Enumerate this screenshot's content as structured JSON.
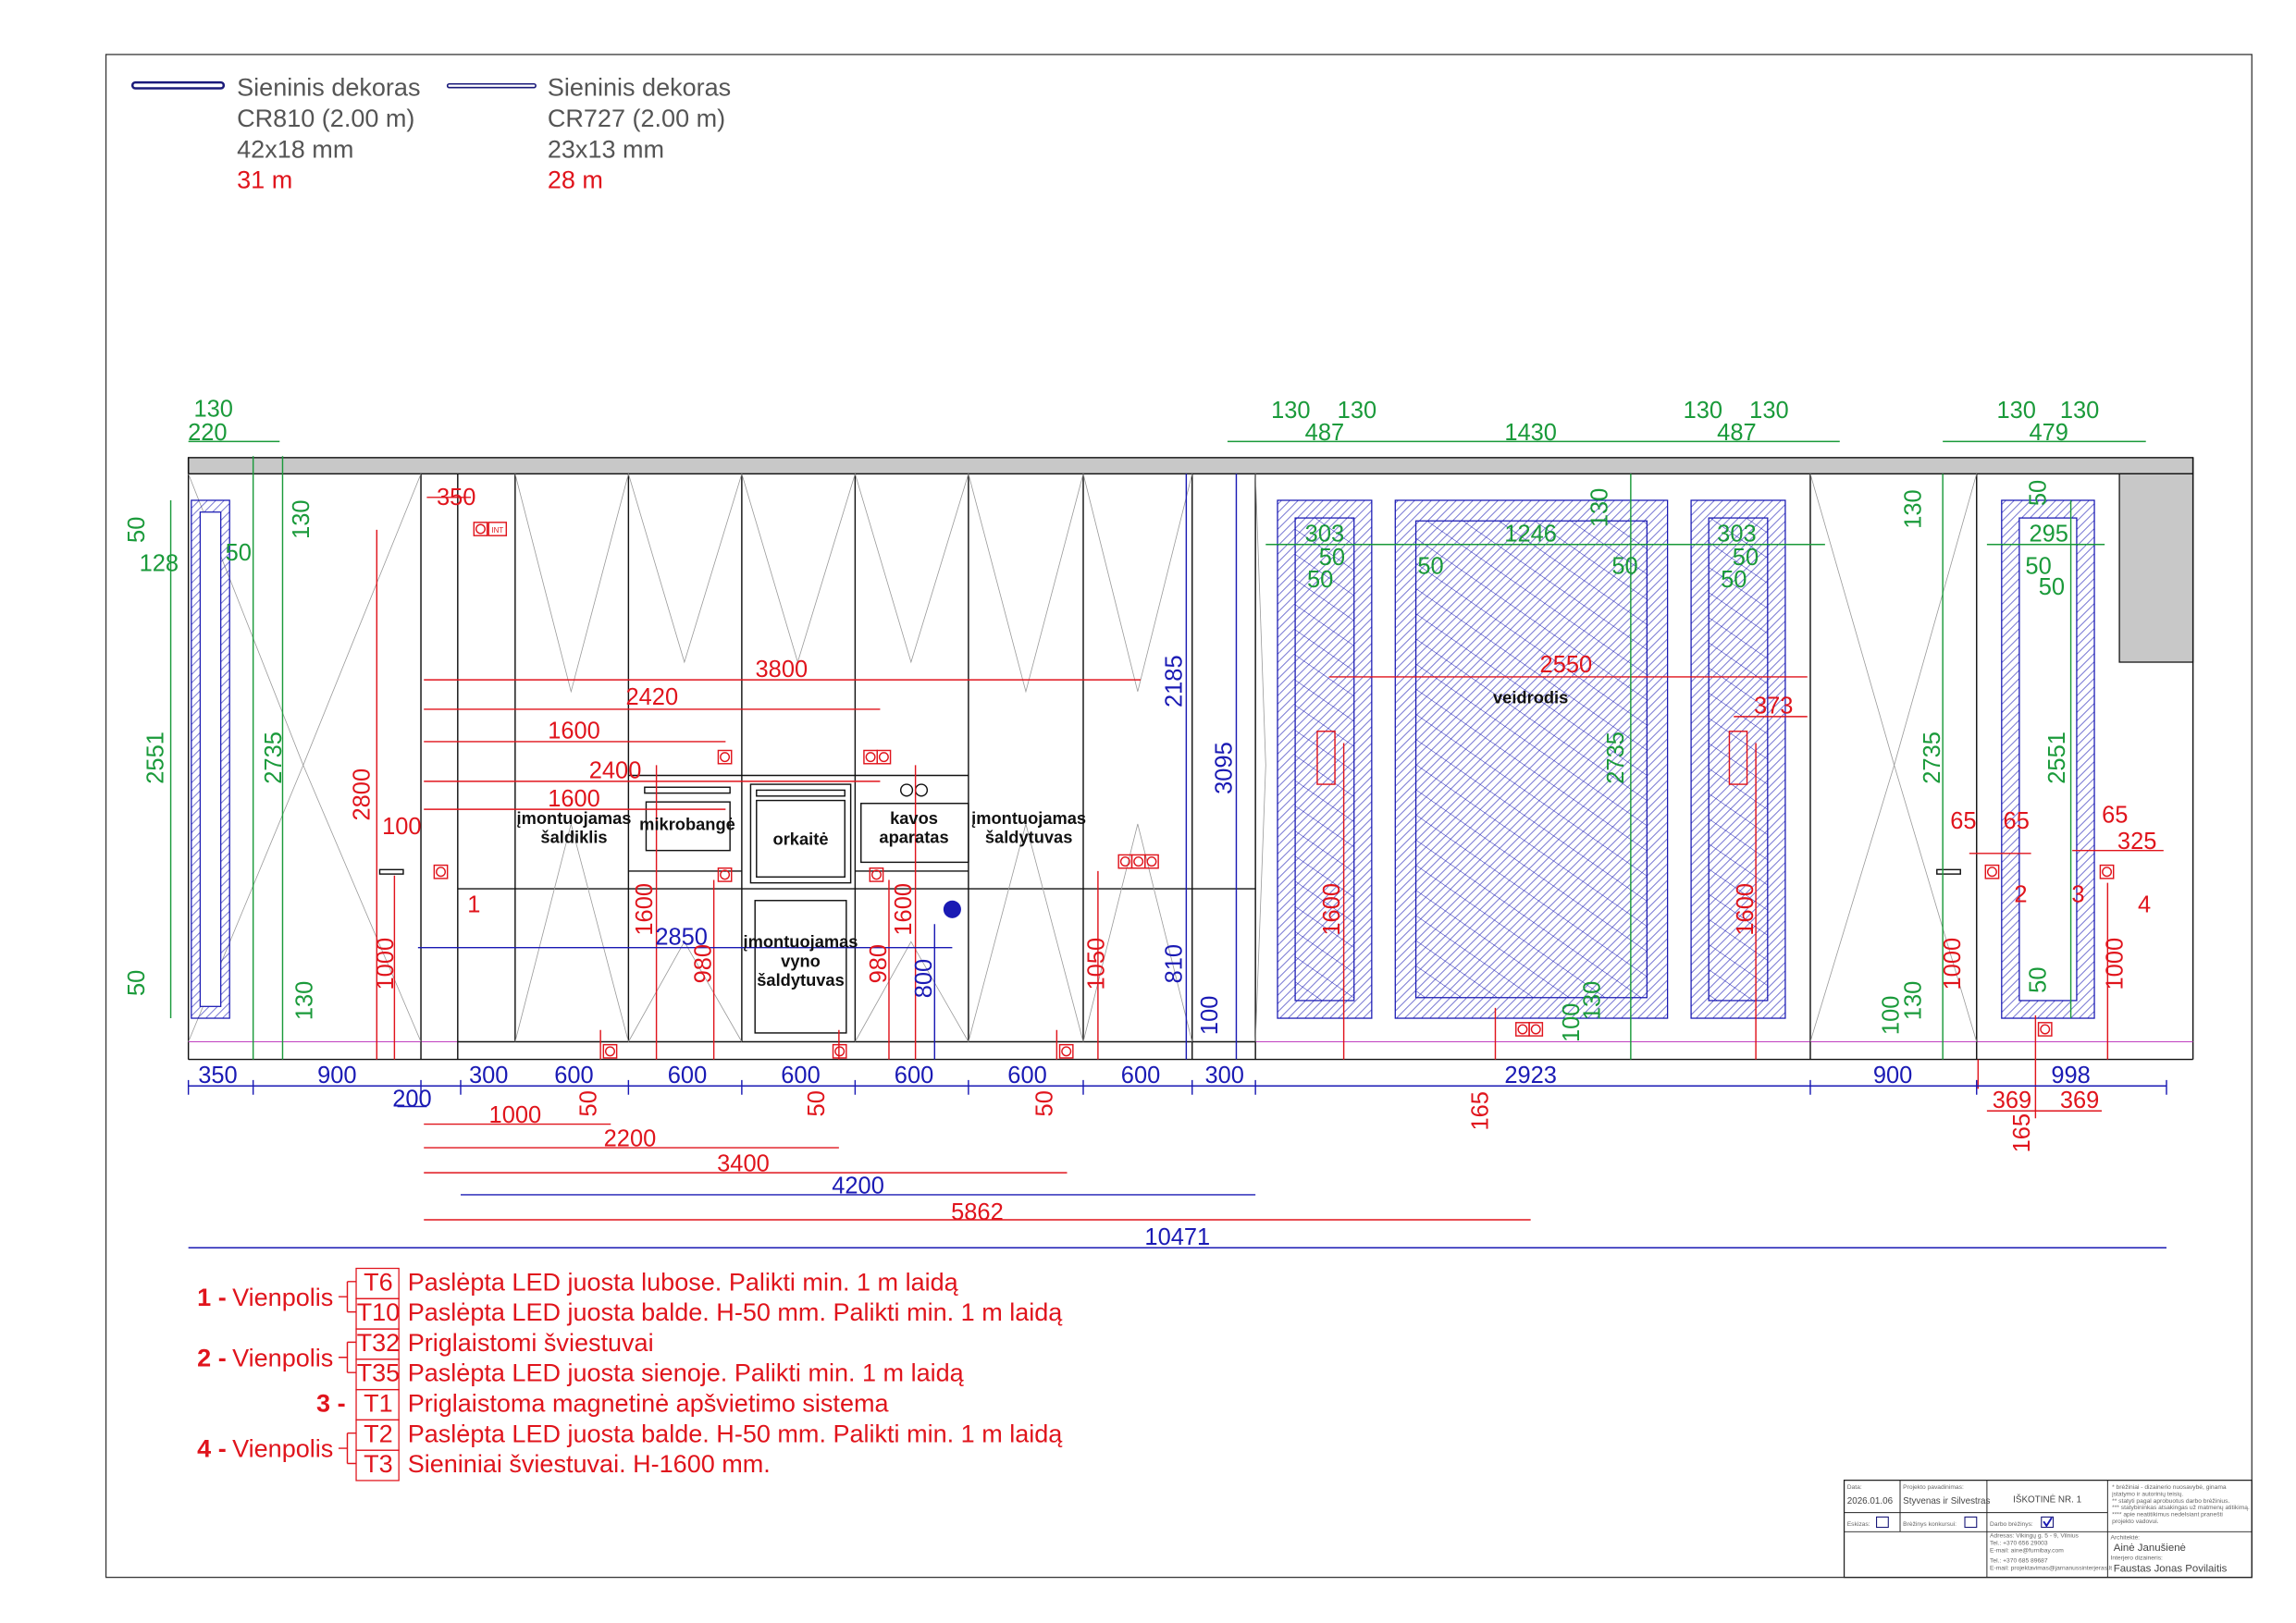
{
  "legend": [
    {
      "name": "Sieninis dekoras",
      "code": "CR810 (2.00 m)",
      "size": "42x18 mm",
      "qty": "31 m"
    },
    {
      "name": "Sieninis dekoras",
      "code": "CR727 (2.00 m)",
      "size": "23x13 mm",
      "qty": "28 m"
    }
  ],
  "labels": {
    "freezer": [
      "įmontuojamas",
      "šaldiklis"
    ],
    "microwave": "mikrobangė",
    "oven": "orkaitė",
    "coffee": [
      "kavos",
      "aparatas"
    ],
    "fridge": [
      "įmontuojamas",
      "šaldytuvas"
    ],
    "wine": [
      "įmontuojamas",
      "vyno",
      "šaldytuvas"
    ],
    "mirror": "veidrodis",
    "socket_int": "INT"
  },
  "markers": [
    "1",
    "2",
    "3",
    "4"
  ],
  "dimensions": {
    "green": [
      "130",
      "220",
      "50",
      "128",
      "50",
      "130",
      "2551",
      "2735",
      "50",
      "130",
      "130",
      "130",
      "487",
      "1430",
      "130",
      "130",
      "487",
      "130",
      "130",
      "479",
      "303",
      "50",
      "50",
      "1246",
      "50",
      "130",
      "50",
      "303",
      "50",
      "50",
      "2735",
      "2735",
      "130",
      "50",
      "295",
      "50",
      "50",
      "2551",
      "50",
      "130",
      "100",
      "100",
      "130"
    ],
    "red": [
      "350",
      "2800",
      "3800",
      "2420",
      "1600",
      "2400",
      "1600",
      "100",
      "1000",
      "1600",
      "980",
      "980",
      "1600",
      "1050",
      "2550",
      "373",
      "1600",
      "1600",
      "65",
      "65",
      "65",
      "325",
      "1000",
      "1000",
      "50",
      "50",
      "50",
      "1000",
      "2200",
      "3400",
      "5862",
      "165",
      "165",
      "369",
      "369"
    ],
    "blue": [
      "350",
      "900",
      "200",
      "300",
      "600",
      "600",
      "600",
      "600",
      "600",
      "600",
      "300",
      "2923",
      "900",
      "998",
      "4200",
      "10471",
      "2850",
      "2185",
      "3095",
      "810",
      "800",
      "100"
    ]
  },
  "notes": [
    {
      "group": "1 -",
      "type": "Vienpolis",
      "items": [
        {
          "code": "T6",
          "text": "Paslėpta LED juosta lubose. Palikti min. 1 m laidą"
        },
        {
          "code": "T10",
          "text": "Paslėpta LED juosta balde. H-50 mm. Palikti min. 1 m laidą"
        }
      ]
    },
    {
      "group": "2 -",
      "type": "Vienpolis",
      "items": [
        {
          "code": "T32",
          "text": "Priglaistomi šviestuvai"
        },
        {
          "code": "T35",
          "text": "Paslėpta LED juosta sienoje. Palikti min. 1 m laidą"
        }
      ]
    },
    {
      "group": "3 -",
      "type": "",
      "items": [
        {
          "code": "T1",
          "text": "Priglaistoma magnetinė apšvietimo sistema"
        }
      ]
    },
    {
      "group": "4 -",
      "type": "Vienpolis",
      "items": [
        {
          "code": "T2",
          "text": "Paslėpta LED juosta balde. H-50 mm. Palikti min. 1 m laidą"
        },
        {
          "code": "T3",
          "text": "Sieniniai šviestuvai. H-1600 mm."
        }
      ]
    }
  ],
  "title_block": {
    "date_label": "Data:",
    "date": "2026.01.06",
    "project_label": "Projekto pavadinimas:",
    "project": "Styvenas ir Silvestras",
    "sheet": "IŠKOTINĖ NR. 1",
    "disclaimers": [
      "*    brėžiniai - dizainerio nuosavybė, ginama",
      "     įstatymo ir autorinių teisių.",
      "**   statyti pagal aprobuotus darbo brėžinius.",
      "***  statybininkas atsakingas už matmenų atitikimą.",
      "**** apie neatitikimus nedelsiant pranešti",
      "     projekto vadovui."
    ],
    "sketch_label": "Eskizas:",
    "sketch_checked": false,
    "contest_label": "Brėžinys konkursui:",
    "contest_checked": false,
    "work_label": "Darbo brėžinys:",
    "work_checked": true,
    "contacts": [
      "Adresas: Vikingų g. 5 - 9, Vilnius",
      "Tel.: +370 656 29003",
      "E-mail: aine@furnibay.com",
      "Tel.: +370 685 89687",
      "E-mail: projektavimas@jarnanussinterjeras.lt"
    ],
    "architect_label": "Architektė:",
    "architect": "Ainė Janušienė",
    "designer_label": "Interjero dizaineris:",
    "designer": "Faustas Jonas Povilaitis"
  },
  "colors": {
    "dimension_green": "#1a9a3a",
    "dimension_red": "#e0141c",
    "dimension_blue": "#1a1ab4",
    "decor_line": "#1a1a7a",
    "ceiling": "#c8c8c8"
  }
}
